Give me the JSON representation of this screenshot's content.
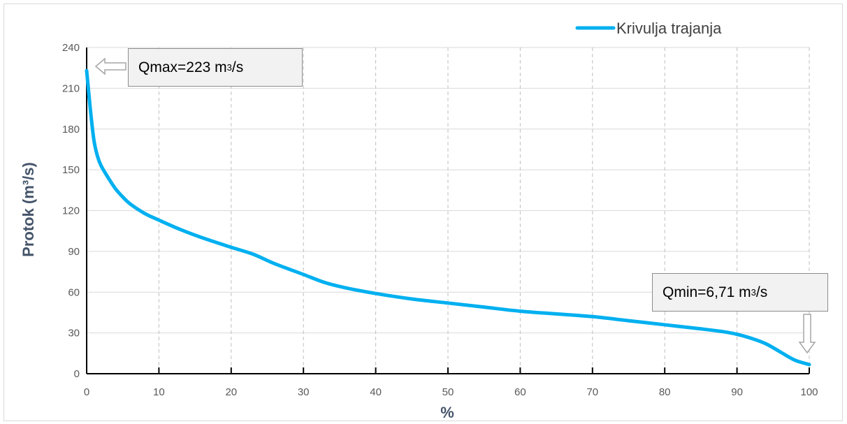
{
  "chart_data": {
    "type": "line",
    "legend": {
      "label": "Krivulja trajanja",
      "position": "top-right"
    },
    "xlabel": "%",
    "ylabel": "Protok (m³/s)",
    "xlim": [
      0,
      100
    ],
    "ylim": [
      0,
      240
    ],
    "xticks": [
      "0",
      "10",
      "20",
      "30",
      "40",
      "50",
      "60",
      "70",
      "80",
      "90",
      "100"
    ],
    "yticks": [
      "0",
      "30",
      "60",
      "90",
      "120",
      "150",
      "180",
      "210",
      "240"
    ],
    "grid": "dashed",
    "series": [
      {
        "name": "Krivulja trajanja",
        "color": "#00b0f0",
        "x": [
          0,
          0.5,
          1,
          1.5,
          2,
          3,
          4,
          5,
          6,
          8,
          10,
          13,
          16,
          20,
          23,
          26,
          30,
          33,
          36,
          40,
          45,
          50,
          55,
          60,
          65,
          70,
          75,
          80,
          85,
          88,
          90,
          92,
          94,
          96,
          98,
          100
        ],
        "y": [
          223,
          195,
          172,
          160,
          153,
          144,
          136,
          130,
          125,
          118,
          113,
          106,
          100,
          93,
          88,
          81,
          73,
          67,
          63,
          59,
          55,
          52,
          49,
          46,
          44,
          42,
          39,
          36,
          33,
          31,
          29,
          26,
          22,
          16,
          10,
          6.71
        ]
      }
    ],
    "annotations": [
      {
        "name": "qmax",
        "text": "Qmax=223 m",
        "sup": "3",
        "suffix": "/s",
        "x": 0,
        "y": 223
      },
      {
        "name": "qmin",
        "text": "Qmin=6,71 m",
        "sup": "3",
        "suffix": "/s",
        "x": 100,
        "y": 6.71
      }
    ]
  }
}
